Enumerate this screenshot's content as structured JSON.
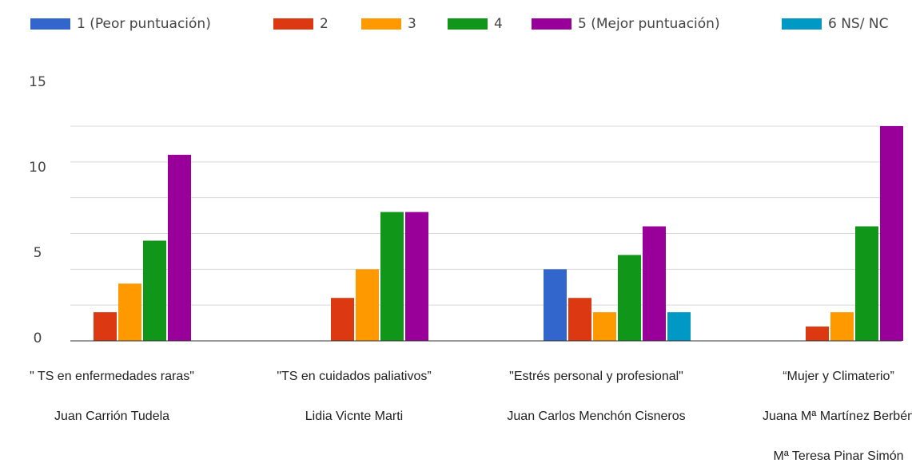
{
  "chart_data": {
    "type": "bar",
    "categories": [
      [
        "\" TS en enfermedades raras\"",
        "Juan Carrión Tudela"
      ],
      [
        "\"TS en cuidados paliativos”",
        "Lidia Vicnte Marti"
      ],
      [
        "\"Estrés personal y profesional\"",
        "Juan Carlos Menchón Cisneros"
      ],
      [
        "“Mujer y Climaterio”",
        "Juana Mª Martínez Berbén",
        "Mª Teresa Pinar Simón"
      ]
    ],
    "series": [
      {
        "name": "1 (Peor puntuación)",
        "color": "#3366cc",
        "values": [
          0,
          0,
          5,
          0
        ]
      },
      {
        "name": "2",
        "color": "#dc3912",
        "values": [
          2,
          3,
          3,
          1
        ]
      },
      {
        "name": "3",
        "color": "#ff9900",
        "values": [
          4,
          5,
          2,
          2
        ]
      },
      {
        "name": "4",
        "color": "#109618",
        "values": [
          7,
          9,
          6,
          8
        ]
      },
      {
        "name": "5 (Mejor puntuación)",
        "color": "#990099",
        "values": [
          13,
          9,
          8,
          15
        ]
      },
      {
        "name": "6 NS/ NC",
        "color": "#0099c6",
        "values": [
          0,
          0,
          2,
          0
        ]
      }
    ],
    "ylim": [
      0,
      15
    ],
    "yticks": [
      0,
      5,
      10,
      15
    ],
    "grid": true,
    "legend": "top"
  }
}
